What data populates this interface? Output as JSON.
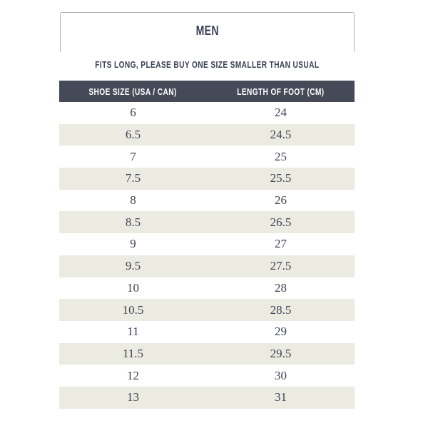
{
  "tab": {
    "label": "MEN"
  },
  "note": {
    "text": "FITS LONG, PLEASE BUY ONE SIZE SMALLER THAN USUAL"
  },
  "size_table": {
    "columns": [
      "SHOE SIZE (USA / CAN)",
      "LENGTH OF FOOT (CM)"
    ],
    "rows": [
      [
        "6",
        "24"
      ],
      [
        "6.5",
        "24.5"
      ],
      [
        "7",
        "25"
      ],
      [
        "7.5",
        "25.5"
      ],
      [
        "8",
        "26"
      ],
      [
        "8.5",
        "26.5"
      ],
      [
        "9",
        "27"
      ],
      [
        "9.5",
        "27.5"
      ],
      [
        "10",
        "28"
      ],
      [
        "10.5",
        "28.5"
      ],
      [
        "11",
        "29"
      ],
      [
        "11.5",
        "29.5"
      ],
      [
        "12",
        "30"
      ],
      [
        "13",
        "31"
      ]
    ]
  },
  "colors": {
    "header_bg": "#464a58",
    "header_text": "#ffffff",
    "row_bg": "#ffffff",
    "row_alt_bg": "#ebebe2",
    "cell_text": "#3f4456",
    "title_text": "#3b4156",
    "tab_border": "#b4b4b4",
    "page_bg": "#ffffff"
  }
}
